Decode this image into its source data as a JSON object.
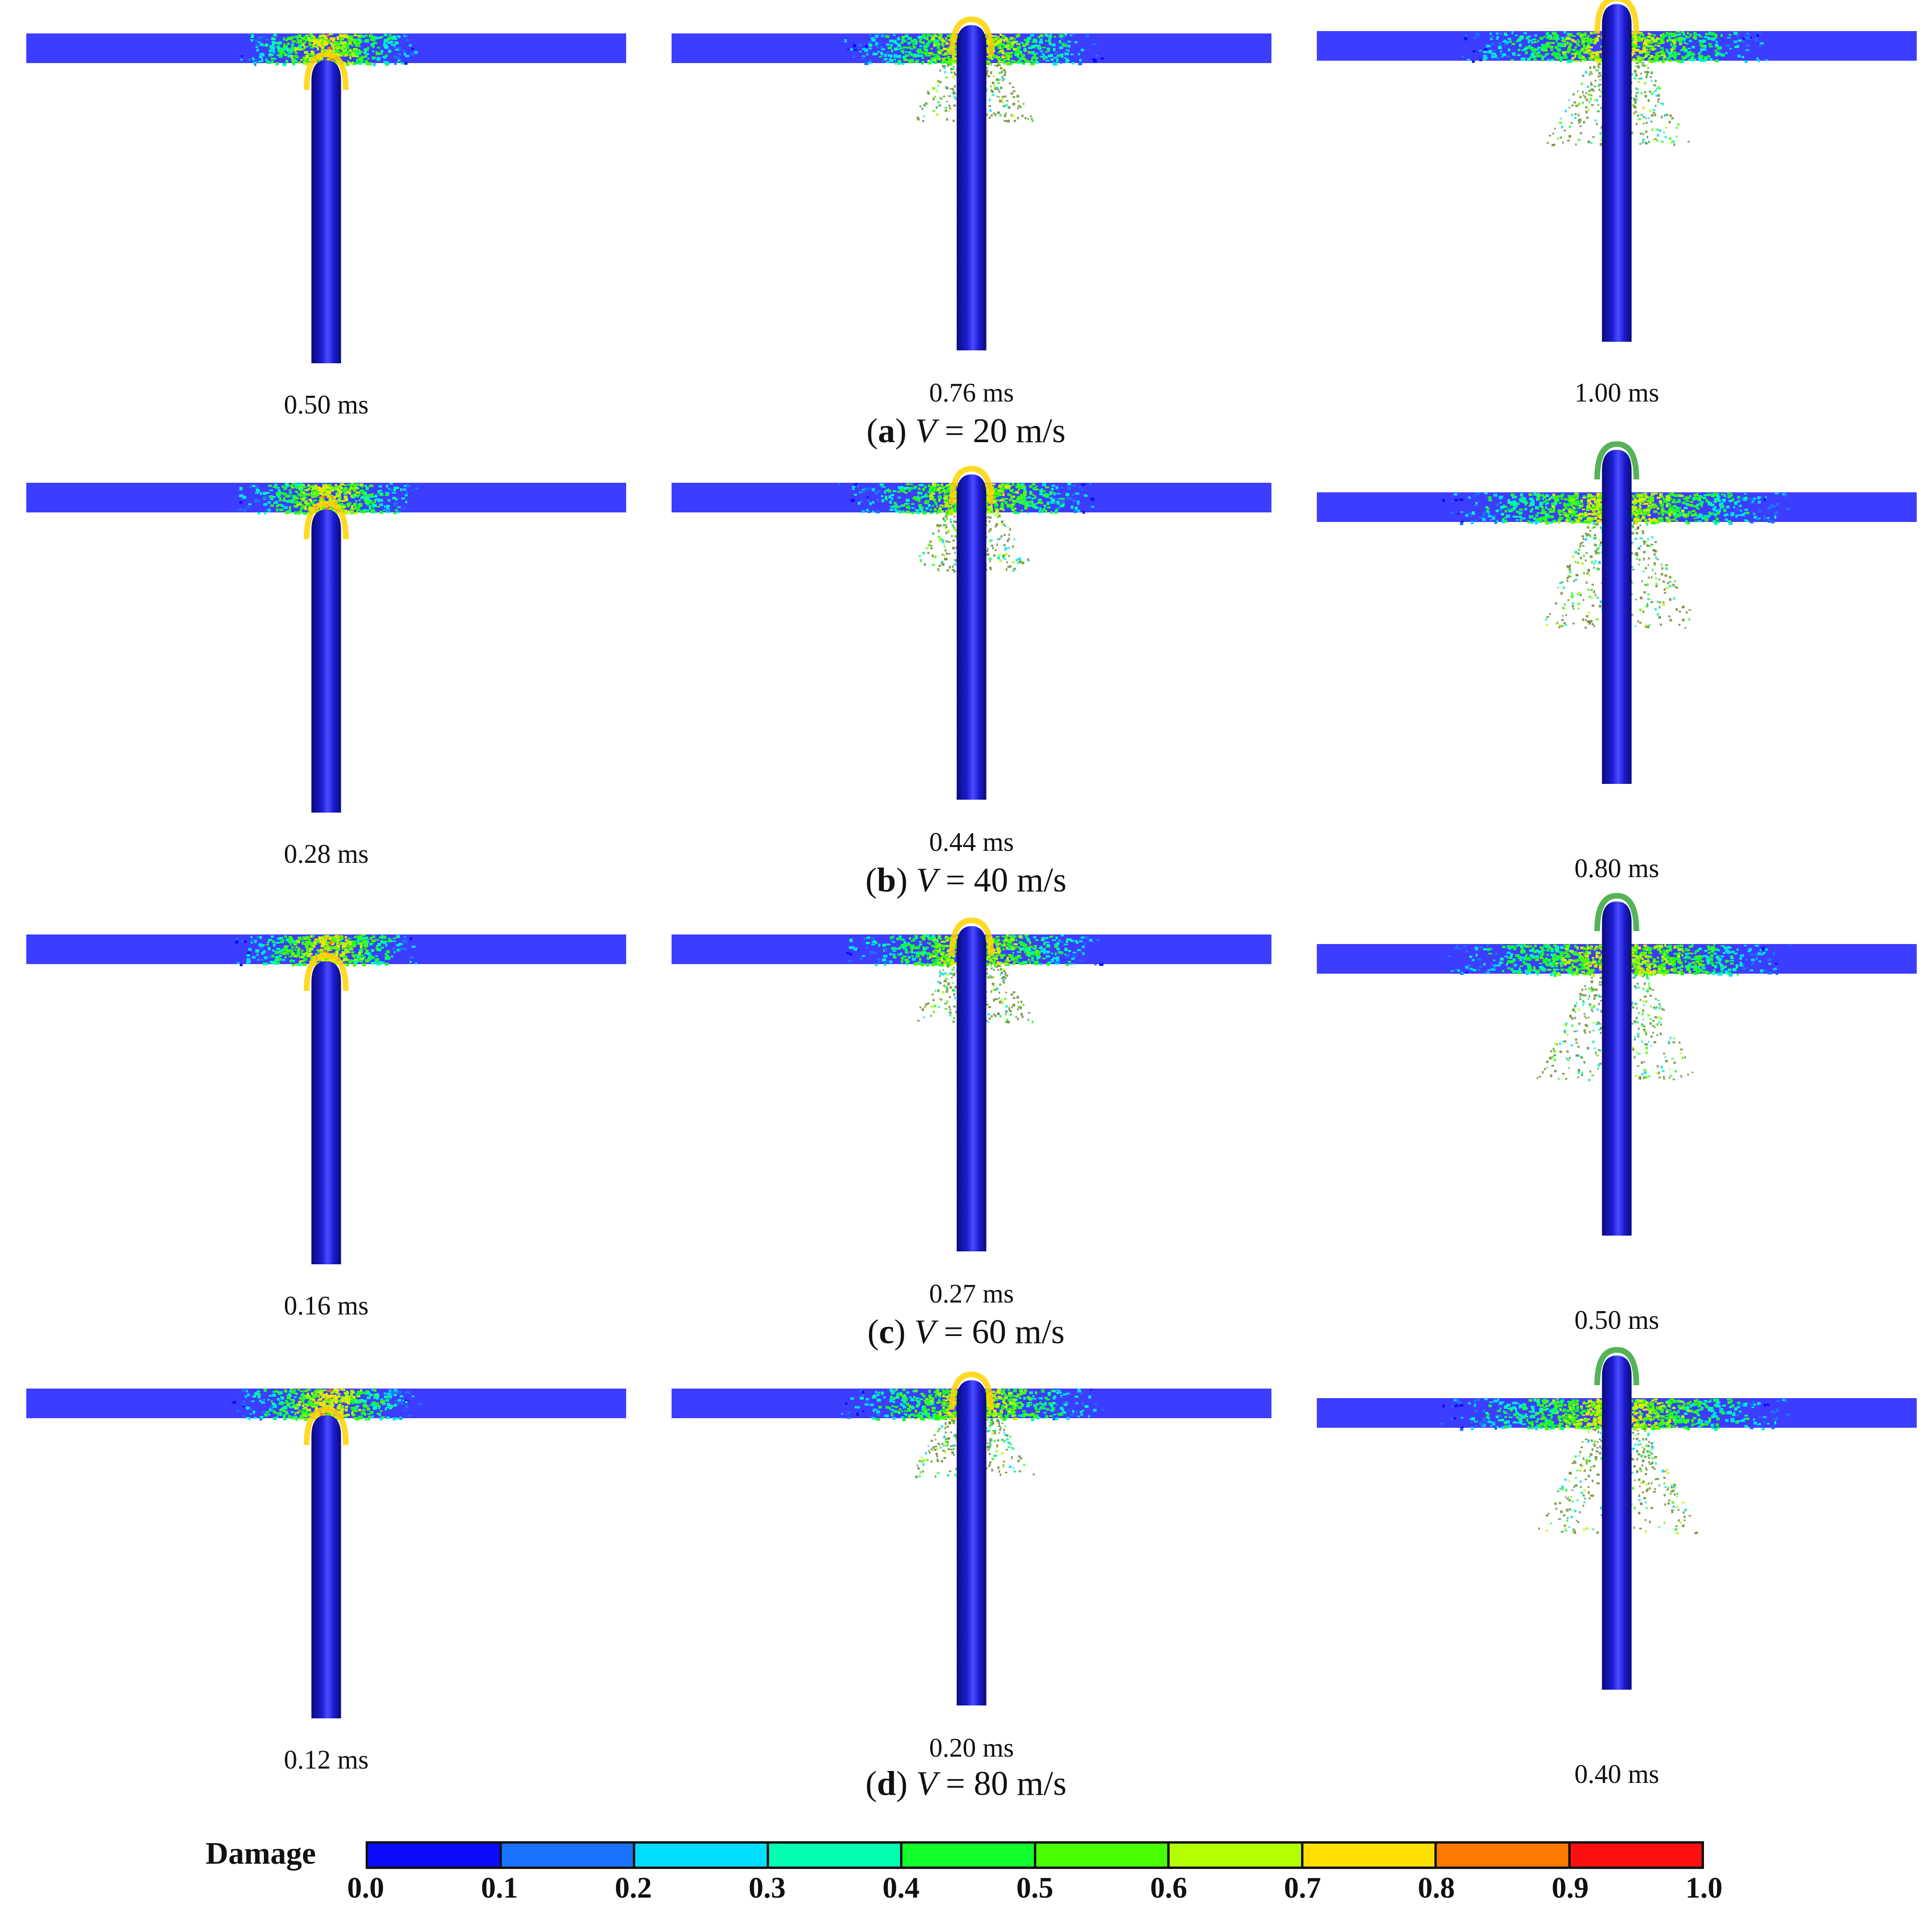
{
  "rows": [
    {
      "caption": {
        "letter": "a",
        "var": "V",
        "value": "= 20 m/s"
      },
      "frames": [
        {
          "time": "0.50 ms",
          "stage": 0.0
        },
        {
          "time": "0.76 ms",
          "stage": 0.45
        },
        {
          "time": "1.00 ms",
          "stage": 0.75
        }
      ]
    },
    {
      "caption": {
        "letter": "b",
        "var": "V",
        "value": "= 40 m/s"
      },
      "frames": [
        {
          "time": "0.28 ms",
          "stage": 0.0
        },
        {
          "time": "0.44 ms",
          "stage": 0.45
        },
        {
          "time": "0.80 ms",
          "stage": 1.0
        }
      ]
    },
    {
      "caption": {
        "letter": "c",
        "var": "V",
        "value": "= 60 m/s"
      },
      "frames": [
        {
          "time": "0.16 ms",
          "stage": 0.0
        },
        {
          "time": "0.27 ms",
          "stage": 0.45
        },
        {
          "time": "0.50 ms",
          "stage": 1.0
        }
      ]
    },
    {
      "caption": {
        "letter": "d",
        "var": "V",
        "value": "= 80 m/s"
      },
      "frames": [
        {
          "time": "0.12 ms",
          "stage": 0.0
        },
        {
          "time": "0.20 ms",
          "stage": 0.45
        },
        {
          "time": "0.40 ms",
          "stage": 1.0
        }
      ]
    }
  ],
  "legend": {
    "title": "Damage",
    "ticks": [
      "0.0",
      "0.1",
      "0.2",
      "0.3",
      "0.4",
      "0.5",
      "0.6",
      "0.7",
      "0.8",
      "0.9",
      "1.0"
    ],
    "colors": [
      "#0b0bff",
      "#1a73ff",
      "#00ddff",
      "#00ffb0",
      "#12ff2e",
      "#48ff00",
      "#b2ff00",
      "#ffe000",
      "#ff7800",
      "#ff1010"
    ]
  },
  "colors": {
    "plate": "#3d3dff",
    "projectile_dark": "#0a0a7a",
    "projectile_mid": "#1c1cd0",
    "projectile_light": "#4b4bff"
  }
}
